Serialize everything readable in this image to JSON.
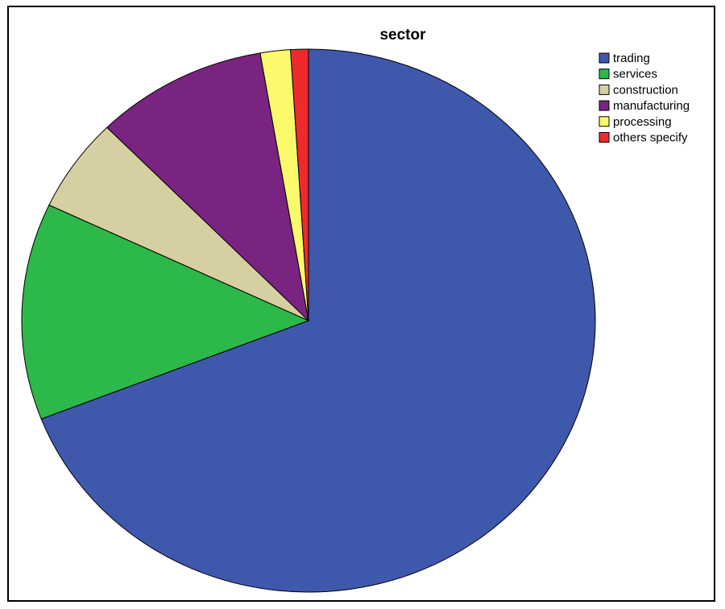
{
  "chart_data": {
    "type": "pie",
    "title": "sector",
    "categories": [
      "trading",
      "services",
      "construction",
      "manufacturing",
      "processing",
      "others specify"
    ],
    "values": [
      69.1,
      12.9,
      5.6,
      9.7,
      1.7,
      1.0
    ],
    "colors": [
      "#3e58ac",
      "#2db84a",
      "#d6cfa1",
      "#7a2481",
      "#fbfa6c",
      "#ef2a2d"
    ],
    "legend": "top-right"
  }
}
